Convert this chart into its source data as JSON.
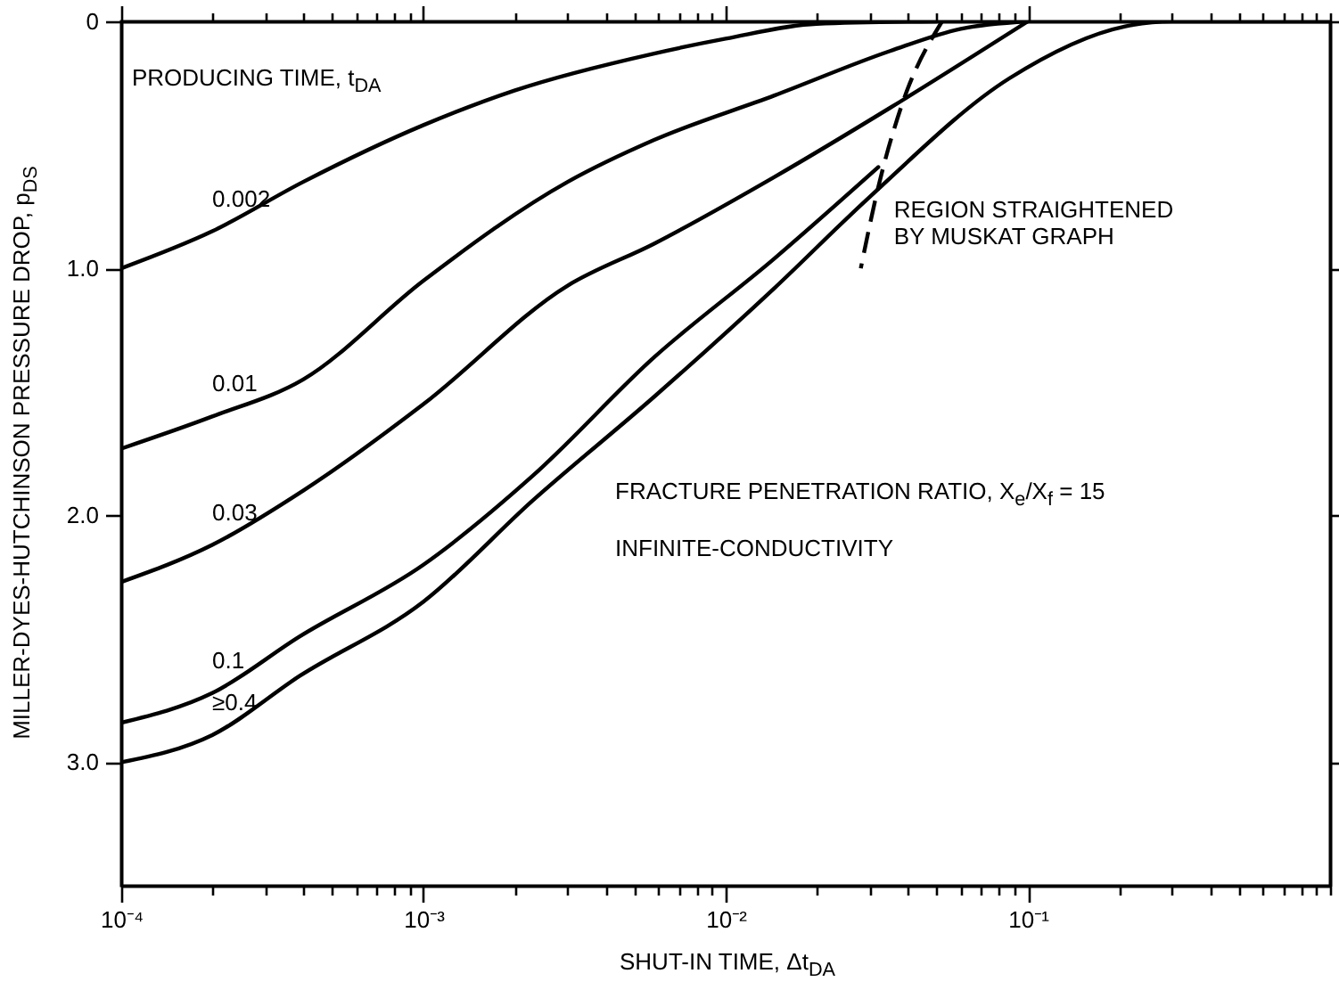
{
  "chart_data": {
    "type": "line",
    "xlabel": "SHUT-IN TIME, Δt$_{DA}$",
    "ylabel": "MILLER-DYES-HUTCHINSON PRESSURE DROP, p$_{DS}$",
    "log": "x",
    "grid": false,
    "marker": "none",
    "line_style": "solid",
    "xlim": [
      0.0001,
      1
    ],
    "ylim": [
      3.5,
      0
    ],
    "xticks": [
      {
        "value": 0.0001,
        "label": "10⁻⁴"
      },
      {
        "value": 0.0002,
        "label": null
      },
      {
        "value": 0.0003,
        "label": null
      },
      {
        "value": 0.0004,
        "label": null
      },
      {
        "value": 0.0005,
        "label": null
      },
      {
        "value": 0.0006,
        "label": null
      },
      {
        "value": 0.0007,
        "label": null
      },
      {
        "value": 0.0008,
        "label": null
      },
      {
        "value": 0.0009,
        "label": null
      },
      {
        "value": 0.001,
        "label": "10⁻³"
      },
      {
        "value": 0.002,
        "label": null
      },
      {
        "value": 0.003,
        "label": null
      },
      {
        "value": 0.004,
        "label": null
      },
      {
        "value": 0.005,
        "label": null
      },
      {
        "value": 0.006,
        "label": null
      },
      {
        "value": 0.007,
        "label": null
      },
      {
        "value": 0.008,
        "label": null
      },
      {
        "value": 0.009,
        "label": null
      },
      {
        "value": 0.01,
        "label": "10⁻²"
      },
      {
        "value": 0.02,
        "label": null
      },
      {
        "value": 0.03,
        "label": null
      },
      {
        "value": 0.04,
        "label": null
      },
      {
        "value": 0.05,
        "label": null
      },
      {
        "value": 0.06,
        "label": null
      },
      {
        "value": 0.07,
        "label": null
      },
      {
        "value": 0.08,
        "label": null
      },
      {
        "value": 0.09,
        "label": null
      },
      {
        "value": 0.1,
        "label": "10⁻¹"
      },
      {
        "value": 0.2,
        "label": null
      },
      {
        "value": 0.3,
        "label": null
      },
      {
        "value": 0.4,
        "label": null
      },
      {
        "value": 0.5,
        "label": null
      },
      {
        "value": 0.6,
        "label": null
      },
      {
        "value": 0.7,
        "label": null
      },
      {
        "value": 0.8,
        "label": null
      },
      {
        "value": 0.9,
        "label": null
      },
      {
        "value": 1,
        "label": null
      }
    ],
    "yticks": [
      0,
      {
        "value": 1,
        "label": "1.0"
      },
      {
        "value": 2,
        "label": "2.0"
      },
      {
        "value": 3,
        "label": "3.0"
      }
    ],
    "series": [
      {
        "name": "0.002",
        "color": "#000000",
        "x": [
          0.0001,
          0.0002,
          0.0004,
          0.001,
          0.002,
          0.0058,
          0.01,
          0.02,
          0.05
        ],
        "values": [
          1.0,
          0.85,
          0.65,
          0.42,
          0.28,
          0.13,
          0.07,
          0.01,
          0
        ]
      },
      {
        "name": "0.01",
        "color": "#000000",
        "x": [
          0.0001,
          0.0002,
          0.0004,
          0.001,
          0.003,
          0.0058,
          0.0145,
          0.035,
          0.06,
          0.1
        ],
        "values": [
          1.73,
          1.6,
          1.45,
          1.05,
          0.65,
          0.48,
          0.3,
          0.12,
          0.03,
          0
        ]
      },
      {
        "name": "0.03",
        "color": "#000000",
        "x": [
          0.0001,
          0.0002,
          0.0004,
          0.001,
          0.003,
          0.0058,
          0.0145,
          0.035,
          0.1
        ],
        "values": [
          2.27,
          2.12,
          1.9,
          1.55,
          1.07,
          0.9,
          0.63,
          0.35,
          0
        ]
      },
      {
        "name": "0.1",
        "color": "#000000",
        "x": [
          0.0001,
          0.0002,
          0.00039,
          0.001,
          0.0023,
          0.0058,
          0.0145,
          0.032
        ],
        "values": [
          2.84,
          2.72,
          2.49,
          2.2,
          1.84,
          1.36,
          0.96,
          0.59
        ]
      },
      {
        "name": "≥0.4",
        "color": "#000000",
        "x": [
          0.0001,
          0.0002,
          0.00039,
          0.001,
          0.0023,
          0.0058,
          0.0145,
          0.03,
          0.087,
          0.21,
          0.3,
          1
        ],
        "values": [
          3.0,
          2.89,
          2.65,
          2.35,
          1.94,
          1.52,
          1.08,
          0.71,
          0.23,
          0.02,
          0,
          0
        ]
      },
      {
        "color": "#000000",
        "line_style": "dashed",
        "x": [
          0.052,
          0.038,
          0.032,
          0.028
        ],
        "values": [
          0,
          0.35,
          0.67,
          1.0
        ]
      }
    ],
    "annotations": [
      "PRODUCING TIME, t$_{DA}$",
      "FRACTURE PENETRATION RATIO, X$_{e}$/X$_{f}$ = 15",
      "INFINITE-CONDUCTIVITY",
      {
        "text": "REGION STRAIGHTENED\nBY MUSKAT GRAPH",
        "x": 0.029,
        "y": 0.75
      }
    ]
  }
}
